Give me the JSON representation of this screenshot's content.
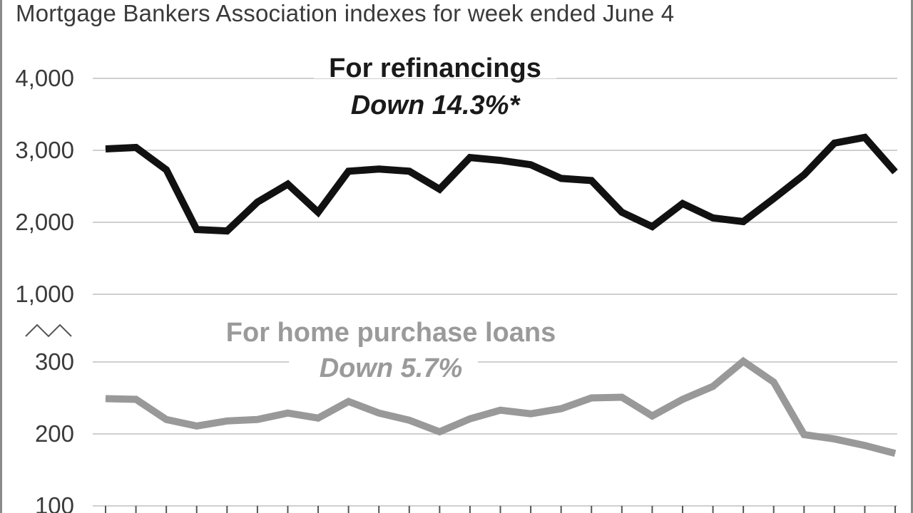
{
  "chart_data": {
    "type": "line",
    "subtitle": "Mortgage Bankers Association indexes for week ended June 4",
    "upper_panel": {
      "ylim": [
        1000,
        4000
      ],
      "yticks": [
        "4,000",
        "3,000",
        "2,000",
        "1,000"
      ]
    },
    "lower_panel": {
      "ylim": [
        100,
        300
      ],
      "yticks": [
        "300",
        "200",
        "100"
      ]
    },
    "series": [
      {
        "name": "For refinancings",
        "annotation": "Down 14.3%*",
        "color": "#111111",
        "values": [
          3020,
          3040,
          2730,
          1900,
          1880,
          2280,
          2530,
          2140,
          2710,
          2740,
          2710,
          2460,
          2900,
          2860,
          2800,
          2610,
          2580,
          2140,
          1940,
          2260,
          2060,
          2010,
          2330,
          2660,
          3100,
          3180,
          2700
        ]
      },
      {
        "name": "For home purchase loans",
        "annotation": "Down 5.7%",
        "color": "#999999",
        "values": [
          249,
          248,
          220,
          211,
          218,
          220,
          229,
          222,
          245,
          229,
          219,
          203,
          221,
          233,
          228,
          235,
          250,
          251,
          225,
          248,
          266,
          301,
          272,
          199,
          193,
          184,
          173
        ]
      }
    ]
  }
}
